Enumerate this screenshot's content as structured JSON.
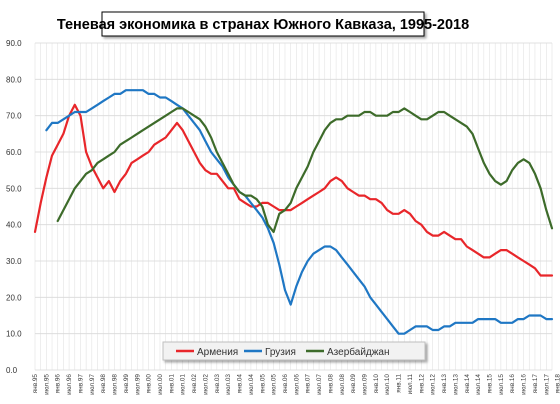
{
  "chart_data": {
    "type": "line",
    "title": "Теневая экономика в странах Южного Кавказа, 1995-2018",
    "ylim": [
      0,
      90
    ],
    "yticks": [
      "0.0",
      "10.0",
      "20.0",
      "30.0",
      "40.0",
      "50.0",
      "60.0",
      "70.0",
      "80.0",
      "90.0"
    ],
    "xticks": [
      "янв.95",
      "июл.95",
      "янв.96",
      "июл.96",
      "янв.97",
      "июл.97",
      "янв.98",
      "июл.98",
      "янв.99",
      "июл.99",
      "янв.00",
      "июл.00",
      "янв.01",
      "июл.01",
      "янв.02",
      "июл.02",
      "янв.03",
      "июл.03",
      "янв.04",
      "июл.04",
      "янв.05",
      "июл.05",
      "янв.06",
      "июл.06",
      "янв.07",
      "июл.07",
      "янв.08",
      "июл.08",
      "янв.09",
      "июл.09",
      "янв.10",
      "июл.10",
      "янв.11",
      "июл.11",
      "янв.12",
      "июл.12",
      "янв.13",
      "июл.13",
      "янв.14",
      "июл.14",
      "янв.15",
      "июл.15",
      "янв.16",
      "июл.16",
      "янв.17",
      "июл.17",
      "янв.18",
      "июл.18"
    ],
    "grid": true,
    "legend_position": "bottom-center",
    "series": [
      {
        "name": "Армения",
        "color": "#e8262a",
        "points": [
          [
            0,
            38
          ],
          [
            1,
            46
          ],
          [
            2,
            53
          ],
          [
            3,
            59
          ],
          [
            4,
            62
          ],
          [
            5,
            65
          ],
          [
            6,
            70
          ],
          [
            7,
            73
          ],
          [
            8,
            70
          ],
          [
            9,
            60
          ],
          [
            10,
            56
          ],
          [
            11,
            53
          ],
          [
            12,
            50
          ],
          [
            13,
            52
          ],
          [
            14,
            49
          ],
          [
            15,
            52
          ],
          [
            16,
            54
          ],
          [
            17,
            57
          ],
          [
            18,
            58
          ],
          [
            19,
            59
          ],
          [
            20,
            60
          ],
          [
            21,
            62
          ],
          [
            22,
            63
          ],
          [
            23,
            64
          ],
          [
            24,
            66
          ],
          [
            25,
            68
          ],
          [
            26,
            66
          ],
          [
            27,
            63
          ],
          [
            28,
            60
          ],
          [
            29,
            57
          ],
          [
            30,
            55
          ],
          [
            31,
            54
          ],
          [
            32,
            54
          ],
          [
            33,
            52
          ],
          [
            34,
            50
          ],
          [
            35,
            50
          ],
          [
            36,
            47
          ],
          [
            37,
            46
          ],
          [
            38,
            45
          ],
          [
            39,
            45
          ],
          [
            40,
            46
          ],
          [
            41,
            46
          ],
          [
            42,
            45
          ],
          [
            43,
            44
          ],
          [
            44,
            44
          ],
          [
            45,
            44
          ],
          [
            46,
            45
          ],
          [
            47,
            46
          ],
          [
            48,
            47
          ],
          [
            49,
            48
          ],
          [
            50,
            49
          ],
          [
            51,
            50
          ],
          [
            52,
            52
          ],
          [
            53,
            53
          ],
          [
            54,
            52
          ],
          [
            55,
            50
          ],
          [
            56,
            49
          ],
          [
            57,
            48
          ],
          [
            58,
            48
          ],
          [
            59,
            47
          ],
          [
            60,
            47
          ],
          [
            61,
            46
          ],
          [
            62,
            44
          ],
          [
            63,
            43
          ],
          [
            64,
            43
          ],
          [
            65,
            44
          ],
          [
            66,
            43
          ],
          [
            67,
            41
          ],
          [
            68,
            40
          ],
          [
            69,
            38
          ],
          [
            70,
            37
          ],
          [
            71,
            37
          ],
          [
            72,
            38
          ],
          [
            73,
            37
          ],
          [
            74,
            36
          ],
          [
            75,
            36
          ],
          [
            76,
            34
          ],
          [
            77,
            33
          ],
          [
            78,
            32
          ],
          [
            79,
            31
          ],
          [
            80,
            31
          ],
          [
            81,
            32
          ],
          [
            82,
            33
          ],
          [
            83,
            33
          ],
          [
            84,
            32
          ],
          [
            85,
            31
          ],
          [
            86,
            30
          ],
          [
            87,
            29
          ],
          [
            88,
            28
          ],
          [
            89,
            26
          ],
          [
            90,
            26
          ],
          [
            91,
            26
          ]
        ]
      },
      {
        "name": "Грузия",
        "color": "#1f77c4",
        "points": [
          [
            2,
            66
          ],
          [
            3,
            68
          ],
          [
            4,
            68
          ],
          [
            5,
            69
          ],
          [
            6,
            70
          ],
          [
            7,
            71
          ],
          [
            8,
            71
          ],
          [
            9,
            71
          ],
          [
            10,
            72
          ],
          [
            11,
            73
          ],
          [
            12,
            74
          ],
          [
            13,
            75
          ],
          [
            14,
            76
          ],
          [
            15,
            76
          ],
          [
            16,
            77
          ],
          [
            17,
            77
          ],
          [
            18,
            77
          ],
          [
            19,
            77
          ],
          [
            20,
            76
          ],
          [
            21,
            76
          ],
          [
            22,
            75
          ],
          [
            23,
            75
          ],
          [
            24,
            74
          ],
          [
            25,
            73
          ],
          [
            26,
            72
          ],
          [
            27,
            70
          ],
          [
            28,
            68
          ],
          [
            29,
            66
          ],
          [
            30,
            63
          ],
          [
            31,
            60
          ],
          [
            32,
            58
          ],
          [
            33,
            56
          ],
          [
            34,
            53
          ],
          [
            35,
            51
          ],
          [
            36,
            49
          ],
          [
            37,
            48
          ],
          [
            38,
            46
          ],
          [
            39,
            44
          ],
          [
            40,
            42
          ],
          [
            41,
            39
          ],
          [
            42,
            35
          ],
          [
            43,
            29
          ],
          [
            44,
            22
          ],
          [
            45,
            18
          ],
          [
            46,
            23
          ],
          [
            47,
            27
          ],
          [
            48,
            30
          ],
          [
            49,
            32
          ],
          [
            50,
            33
          ],
          [
            51,
            34
          ],
          [
            52,
            34
          ],
          [
            53,
            33
          ],
          [
            54,
            31
          ],
          [
            55,
            29
          ],
          [
            56,
            27
          ],
          [
            57,
            25
          ],
          [
            58,
            23
          ],
          [
            59,
            20
          ],
          [
            60,
            18
          ],
          [
            61,
            16
          ],
          [
            62,
            14
          ],
          [
            63,
            12
          ],
          [
            64,
            10
          ],
          [
            65,
            10
          ],
          [
            66,
            11
          ],
          [
            67,
            12
          ],
          [
            68,
            12
          ],
          [
            69,
            12
          ],
          [
            70,
            11
          ],
          [
            71,
            11
          ],
          [
            72,
            12
          ],
          [
            73,
            12
          ],
          [
            74,
            13
          ],
          [
            75,
            13
          ],
          [
            76,
            13
          ],
          [
            77,
            13
          ],
          [
            78,
            14
          ],
          [
            79,
            14
          ],
          [
            80,
            14
          ],
          [
            81,
            14
          ],
          [
            82,
            13
          ],
          [
            83,
            13
          ],
          [
            84,
            13
          ],
          [
            85,
            14
          ],
          [
            86,
            14
          ],
          [
            87,
            15
          ],
          [
            88,
            15
          ],
          [
            89,
            15
          ],
          [
            90,
            14
          ],
          [
            91,
            14
          ]
        ]
      },
      {
        "name": "Азербайджан",
        "color": "#3d6b2a",
        "points": [
          [
            4,
            41
          ],
          [
            5,
            44
          ],
          [
            6,
            47
          ],
          [
            7,
            50
          ],
          [
            8,
            52
          ],
          [
            9,
            54
          ],
          [
            10,
            55
          ],
          [
            11,
            57
          ],
          [
            12,
            58
          ],
          [
            13,
            59
          ],
          [
            14,
            60
          ],
          [
            15,
            62
          ],
          [
            16,
            63
          ],
          [
            17,
            64
          ],
          [
            18,
            65
          ],
          [
            19,
            66
          ],
          [
            20,
            67
          ],
          [
            21,
            68
          ],
          [
            22,
            69
          ],
          [
            23,
            70
          ],
          [
            24,
            71
          ],
          [
            25,
            72
          ],
          [
            26,
            72
          ],
          [
            27,
            71
          ],
          [
            28,
            70
          ],
          [
            29,
            69
          ],
          [
            30,
            67
          ],
          [
            31,
            64
          ],
          [
            32,
            60
          ],
          [
            33,
            57
          ],
          [
            34,
            54
          ],
          [
            35,
            51
          ],
          [
            36,
            49
          ],
          [
            37,
            48
          ],
          [
            38,
            48
          ],
          [
            39,
            47
          ],
          [
            40,
            45
          ],
          [
            41,
            40
          ],
          [
            42,
            38
          ],
          [
            43,
            43
          ],
          [
            44,
            44
          ],
          [
            45,
            46
          ],
          [
            46,
            50
          ],
          [
            47,
            53
          ],
          [
            48,
            56
          ],
          [
            49,
            60
          ],
          [
            50,
            63
          ],
          [
            51,
            66
          ],
          [
            52,
            68
          ],
          [
            53,
            69
          ],
          [
            54,
            69
          ],
          [
            55,
            70
          ],
          [
            56,
            70
          ],
          [
            57,
            70
          ],
          [
            58,
            71
          ],
          [
            59,
            71
          ],
          [
            60,
            70
          ],
          [
            61,
            70
          ],
          [
            62,
            70
          ],
          [
            63,
            71
          ],
          [
            64,
            71
          ],
          [
            65,
            72
          ],
          [
            66,
            71
          ],
          [
            67,
            70
          ],
          [
            68,
            69
          ],
          [
            69,
            69
          ],
          [
            70,
            70
          ],
          [
            71,
            71
          ],
          [
            72,
            71
          ],
          [
            73,
            70
          ],
          [
            74,
            69
          ],
          [
            75,
            68
          ],
          [
            76,
            67
          ],
          [
            77,
            65
          ],
          [
            78,
            61
          ],
          [
            79,
            57
          ],
          [
            80,
            54
          ],
          [
            81,
            52
          ],
          [
            82,
            51
          ],
          [
            83,
            52
          ],
          [
            84,
            55
          ],
          [
            85,
            57
          ],
          [
            86,
            58
          ],
          [
            87,
            57
          ],
          [
            88,
            54
          ],
          [
            89,
            50
          ],
          [
            90,
            44
          ],
          [
            91,
            39
          ]
        ]
      }
    ]
  }
}
